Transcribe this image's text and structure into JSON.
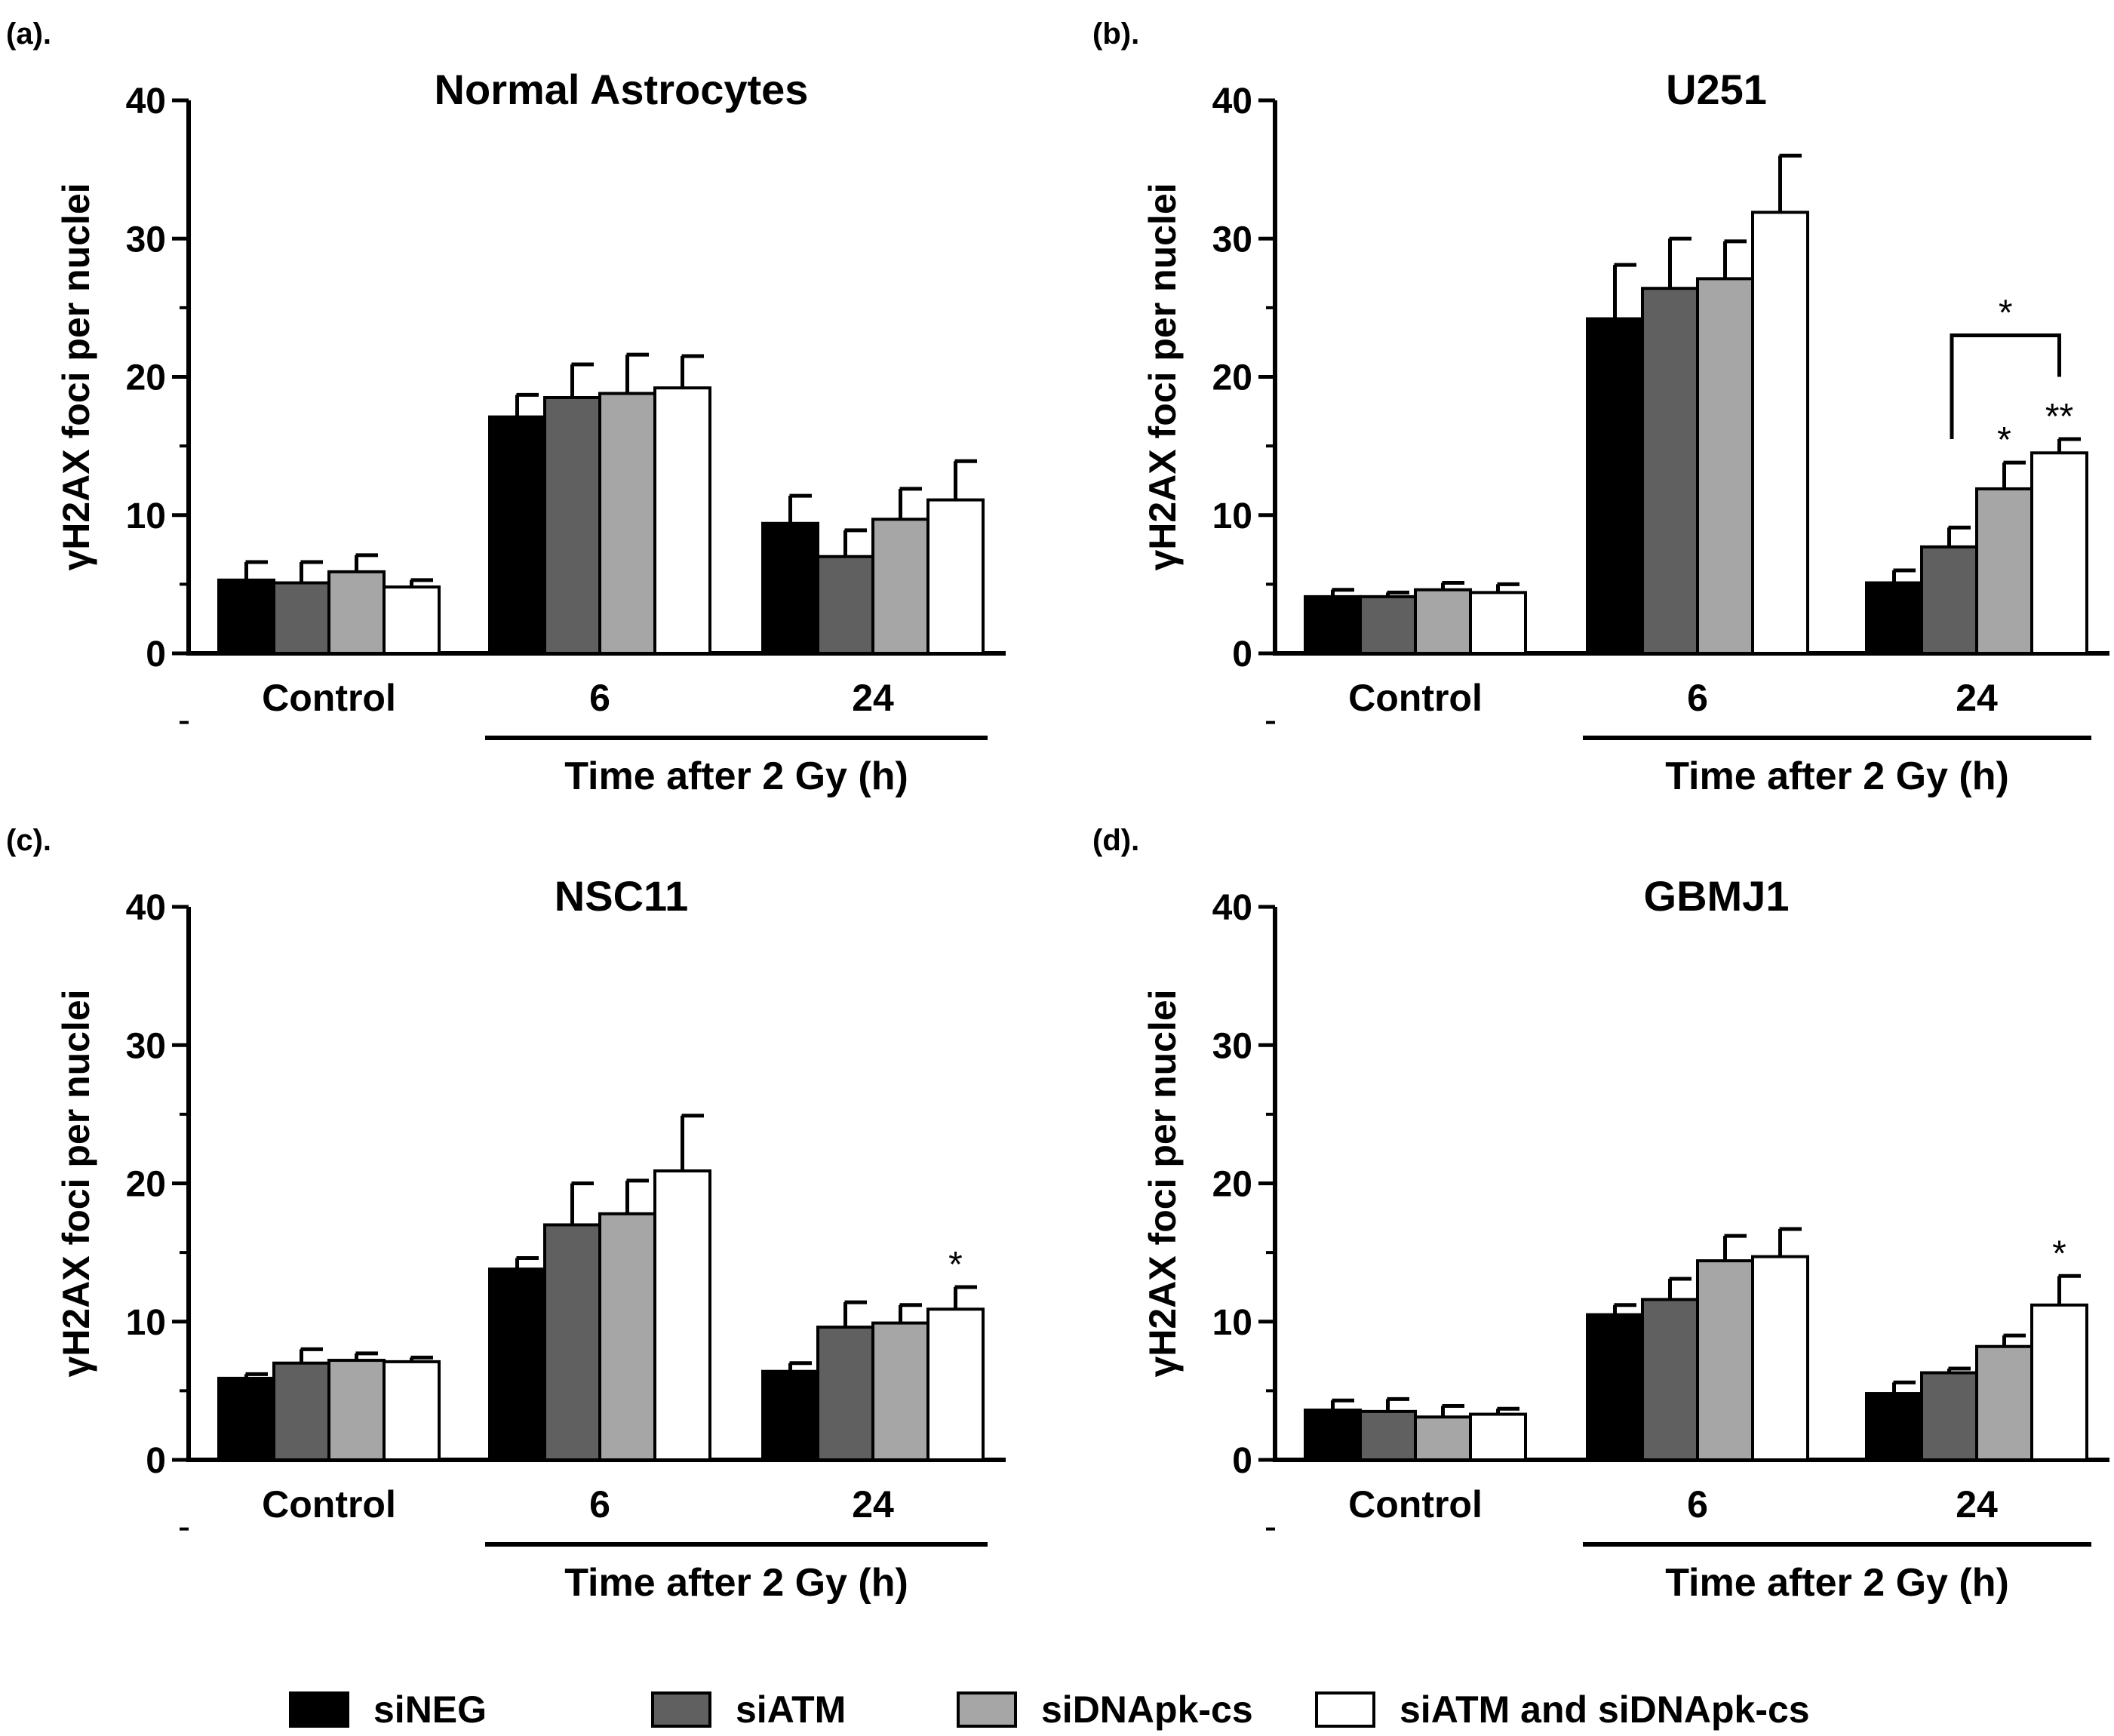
{
  "panel_titles_note": "",
  "y_axis_label": "γH2AX foci per nuclei",
  "group_axis_label": "Time after 2 Gy (h)",
  "legend": [
    {
      "name": "siNEG",
      "color": "#000000"
    },
    {
      "name": "siATM",
      "color": "#606060"
    },
    {
      "name": "siDNApk-cs",
      "color": "#a6a6a6"
    },
    {
      "name": "siATM and siDNApk-cs",
      "color": "#ffffff"
    }
  ],
  "chart_data": [
    {
      "type": "bar",
      "panel_label": "(a).",
      "title": "Normal Astrocytes",
      "categories": [
        "Control",
        "6",
        "24"
      ],
      "ylabel": "γH2AX foci per nuclei",
      "xlabel": "Time after 2 Gy (h)",
      "ylim": [
        0,
        40
      ],
      "yticks": [
        0,
        10,
        20,
        30,
        40
      ],
      "series": [
        {
          "name": "siNEG",
          "values": [
            5.3,
            17.1,
            9.4
          ],
          "errors": [
            1.3,
            1.6,
            2.0
          ]
        },
        {
          "name": "siATM",
          "values": [
            5.1,
            18.5,
            7.0
          ],
          "errors": [
            1.5,
            2.4,
            1.9
          ]
        },
        {
          "name": "siDNApk-cs",
          "values": [
            5.9,
            18.8,
            9.7
          ],
          "errors": [
            1.2,
            2.8,
            2.2
          ]
        },
        {
          "name": "siATM and siDNApk-cs",
          "values": [
            4.8,
            19.2,
            11.1
          ],
          "errors": [
            0.5,
            2.3,
            2.8
          ]
        }
      ],
      "annotations": []
    },
    {
      "type": "bar",
      "panel_label": "(b).",
      "title": "U251",
      "categories": [
        "Control",
        "6",
        "24"
      ],
      "ylabel": "γH2AX foci per nuclei",
      "xlabel": "Time after 2 Gy (h)",
      "ylim": [
        0,
        40
      ],
      "yticks": [
        0,
        10,
        20,
        30,
        40
      ],
      "series": [
        {
          "name": "siNEG",
          "values": [
            4.1,
            24.2,
            5.1
          ],
          "errors": [
            0.5,
            3.9,
            0.9
          ]
        },
        {
          "name": "siATM",
          "values": [
            4.1,
            26.4,
            7.7
          ],
          "errors": [
            0.3,
            3.6,
            1.4
          ]
        },
        {
          "name": "siDNApk-cs",
          "values": [
            4.6,
            27.1,
            11.9
          ],
          "errors": [
            0.5,
            2.7,
            1.9
          ]
        },
        {
          "name": "siATM and siDNApk-cs",
          "values": [
            4.4,
            31.9,
            14.5
          ],
          "errors": [
            0.6,
            4.1,
            1.0
          ]
        }
      ],
      "annotations": [
        {
          "series": 2,
          "category": 2,
          "text": "*"
        },
        {
          "series": 3,
          "category": 2,
          "text": "**"
        }
      ],
      "bracket": {
        "from_series": 0,
        "to_series": 3,
        "category": 2,
        "text": "*"
      }
    },
    {
      "type": "bar",
      "panel_label": "(c).",
      "title": "NSC11",
      "categories": [
        "Control",
        "6",
        "24"
      ],
      "ylabel": "γH2AX foci per nuclei",
      "xlabel": "Time after 2 Gy (h)",
      "ylim": [
        0,
        40
      ],
      "yticks": [
        0,
        10,
        20,
        30,
        40
      ],
      "series": [
        {
          "name": "siNEG",
          "values": [
            5.9,
            13.8,
            6.4
          ],
          "errors": [
            0.3,
            0.8,
            0.6
          ]
        },
        {
          "name": "siATM",
          "values": [
            7.0,
            17.0,
            9.6
          ],
          "errors": [
            1.0,
            3.0,
            1.8
          ]
        },
        {
          "name": "siDNApk-cs",
          "values": [
            7.2,
            17.8,
            9.9
          ],
          "errors": [
            0.5,
            2.4,
            1.3
          ]
        },
        {
          "name": "siATM and siDNApk-cs",
          "values": [
            7.1,
            20.9,
            10.9
          ],
          "errors": [
            0.3,
            4.0,
            1.6
          ]
        }
      ],
      "annotations": [
        {
          "series": 3,
          "category": 2,
          "text": "*"
        }
      ]
    },
    {
      "type": "bar",
      "panel_label": "(d).",
      "title": "GBMJ1",
      "categories": [
        "Control",
        "6",
        "24"
      ],
      "ylabel": "γH2AX foci per nuclei",
      "xlabel": "Time after 2 Gy (h)",
      "ylim": [
        0,
        40
      ],
      "yticks": [
        0,
        10,
        20,
        30,
        40
      ],
      "series": [
        {
          "name": "siNEG",
          "values": [
            3.6,
            10.5,
            4.8
          ],
          "errors": [
            0.7,
            0.7,
            0.8
          ]
        },
        {
          "name": "siATM",
          "values": [
            3.5,
            11.6,
            6.3
          ],
          "errors": [
            0.9,
            1.5,
            0.3
          ]
        },
        {
          "name": "siDNApk-cs",
          "values": [
            3.1,
            14.4,
            8.2
          ],
          "errors": [
            0.8,
            1.8,
            0.8
          ]
        },
        {
          "name": "siATM and siDNApk-cs",
          "values": [
            3.3,
            14.7,
            11.2
          ],
          "errors": [
            0.4,
            2.0,
            2.1
          ]
        }
      ],
      "annotations": [
        {
          "series": 3,
          "category": 2,
          "text": "*"
        }
      ]
    }
  ]
}
